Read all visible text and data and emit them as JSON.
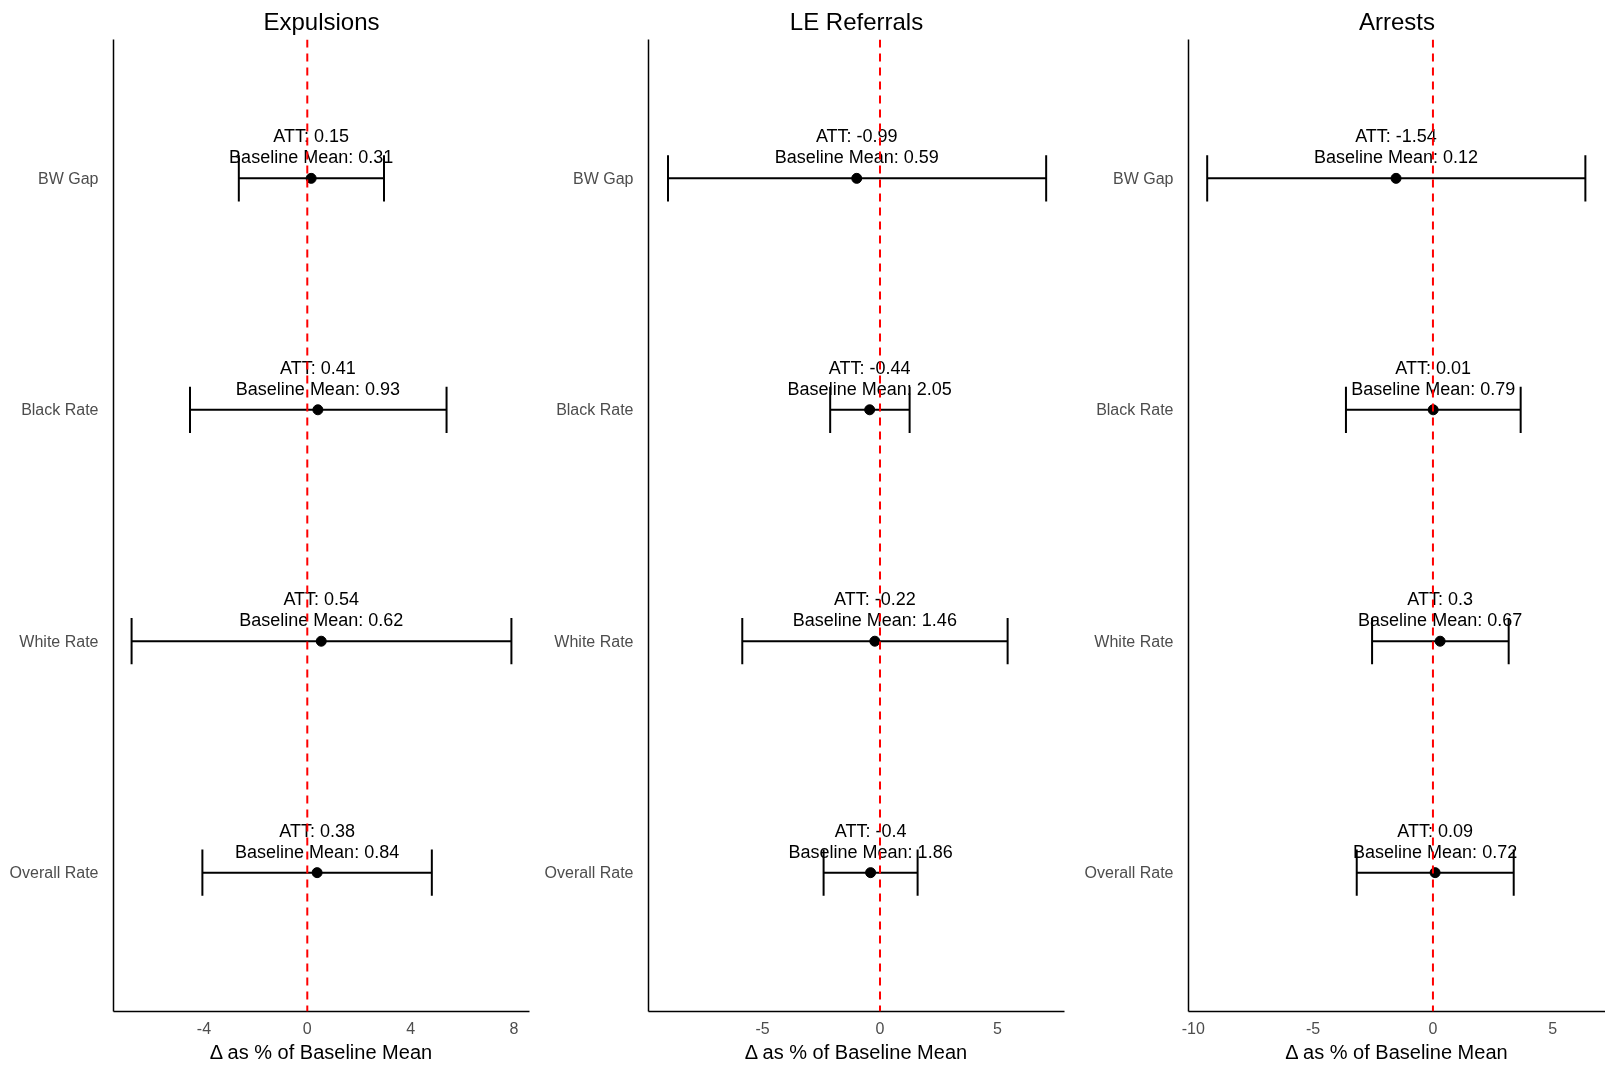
{
  "chart_data": [
    {
      "type": "scatter",
      "orientation": "horizontal",
      "title": "Expulsions",
      "xlabel": "Δ as % of Baseline Mean",
      "categories": [
        "BW Gap",
        "Black Rate",
        "White Rate",
        "Overall Rate"
      ],
      "values": [
        0.15,
        0.41,
        0.54,
        0.38
      ],
      "errors": [
        [
          -2.65,
          2.97
        ],
        [
          -4.54,
          5.39
        ],
        [
          -6.8,
          7.9
        ],
        [
          -4.06,
          4.82
        ]
      ],
      "color": "#000000",
      "marker": "circle",
      "grid": false,
      "xlim": [
        -7.5,
        8.6
      ],
      "xticks": [
        -4,
        0,
        4,
        8
      ],
      "ref_lines": [
        {
          "axis": "x",
          "value": 0,
          "color": "#ff0000",
          "line_style": "dashed"
        }
      ],
      "annotations": [
        {
          "text": "ATT: 0.15\nBaseline Mean: 0.31",
          "x": 0.15,
          "y": "BW Gap"
        },
        {
          "text": "ATT: 0.41\nBaseline Mean: 0.93",
          "x": 0.41,
          "y": "Black Rate"
        },
        {
          "text": "ATT: 0.54\nBaseline Mean: 0.62",
          "x": 0.54,
          "y": "White Rate"
        },
        {
          "text": "ATT: 0.38\nBaseline Mean: 0.84",
          "x": 0.38,
          "y": "Overall Rate"
        }
      ]
    },
    {
      "type": "scatter",
      "orientation": "horizontal",
      "title": "LE Referrals",
      "xlabel": "Δ as % of Baseline Mean",
      "categories": [
        "BW Gap",
        "Black Rate",
        "White Rate",
        "Overall Rate"
      ],
      "values": [
        -0.99,
        -0.44,
        -0.22,
        -0.4
      ],
      "errors": [
        [
          -9.02,
          7.07
        ],
        [
          -2.12,
          1.26
        ],
        [
          -5.86,
          5.43
        ],
        [
          -2.4,
          1.6
        ]
      ],
      "color": "#000000",
      "marker": "circle",
      "grid": false,
      "xlim": [
        -9.85,
        7.85
      ],
      "xticks": [
        -5,
        0,
        5
      ],
      "ref_lines": [
        {
          "axis": "x",
          "value": 0,
          "color": "#ff0000",
          "line_style": "dashed"
        }
      ],
      "annotations": [
        {
          "text": "ATT: -0.99\nBaseline Mean: 0.59",
          "x": -0.99,
          "y": "BW Gap"
        },
        {
          "text": "ATT: -0.44\nBaseline Mean: 2.05",
          "x": -0.44,
          "y": "Black Rate"
        },
        {
          "text": "ATT: -0.22\nBaseline Mean: 1.46",
          "x": -0.22,
          "y": "White Rate"
        },
        {
          "text": "ATT: -0.4\nBaseline Mean: 1.86",
          "x": -0.4,
          "y": "Overall Rate"
        }
      ]
    },
    {
      "type": "scatter",
      "orientation": "horizontal",
      "title": "Arrests",
      "xlabel": "Δ as % of Baseline Mean",
      "categories": [
        "BW Gap",
        "Black Rate",
        "White Rate",
        "Overall Rate"
      ],
      "values": [
        -1.54,
        0.01,
        0.3,
        0.09
      ],
      "errors": [
        [
          -9.42,
          6.36
        ],
        [
          -3.63,
          3.66
        ],
        [
          -2.54,
          3.16
        ],
        [
          -3.18,
          3.37
        ]
      ],
      "color": "#000000",
      "marker": "circle",
      "grid": false,
      "xlim": [
        -10.2,
        7.2
      ],
      "xticks": [
        -10,
        -5,
        0,
        5
      ],
      "ref_lines": [
        {
          "axis": "x",
          "value": 0,
          "color": "#ff0000",
          "line_style": "dashed"
        }
      ],
      "annotations": [
        {
          "text": "ATT: -1.54\nBaseline Mean: 0.12",
          "x": -1.54,
          "y": "BW Gap"
        },
        {
          "text": "ATT: 0.01\nBaseline Mean: 0.79",
          "x": 0.01,
          "y": "Black Rate"
        },
        {
          "text": "ATT: 0.3\nBaseline Mean: 0.67",
          "x": 0.3,
          "y": "White Rate"
        },
        {
          "text": "ATT: 0.09\nBaseline Mean: 0.72",
          "x": 0.09,
          "y": "Overall Rate"
        }
      ]
    }
  ]
}
